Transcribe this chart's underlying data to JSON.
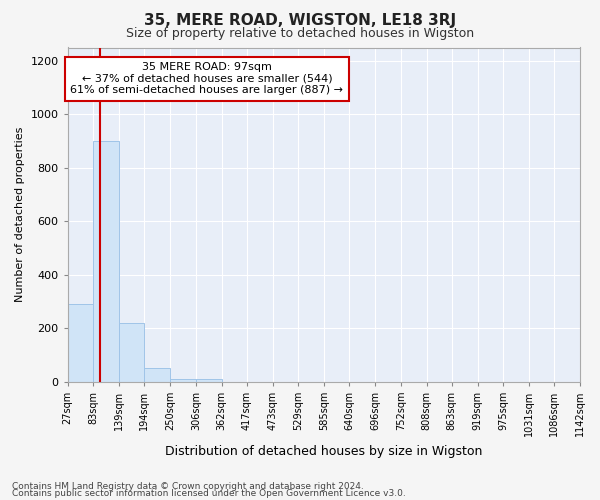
{
  "title": "35, MERE ROAD, WIGSTON, LE18 3RJ",
  "subtitle": "Size of property relative to detached houses in Wigston",
  "xlabel": "Distribution of detached houses by size in Wigston",
  "ylabel": "Number of detached properties",
  "bar_color": "#d0e4f7",
  "bar_edgecolor": "#a0c4e8",
  "plot_bg_color": "#e8eef8",
  "fig_bg_color": "#f5f5f5",
  "grid_color": "#ffffff",
  "bin_edges": [
    27,
    83,
    139,
    194,
    250,
    306,
    362,
    417,
    473,
    529,
    585,
    640,
    696,
    752,
    808,
    863,
    919,
    975,
    1031,
    1086,
    1142
  ],
  "bar_heights": [
    290,
    900,
    220,
    50,
    10,
    10,
    0,
    0,
    0,
    0,
    0,
    0,
    0,
    0,
    0,
    0,
    0,
    0,
    0,
    0
  ],
  "property_size": 97,
  "property_line_color": "#cc0000",
  "annotation_line1": "35 MERE ROAD: 97sqm",
  "annotation_line2": "← 37% of detached houses are smaller (544)",
  "annotation_line3": "61% of semi-detached houses are larger (887) →",
  "annotation_box_color": "#ffffff",
  "annotation_box_edgecolor": "#cc0000",
  "ylim": [
    0,
    1250
  ],
  "yticks": [
    0,
    200,
    400,
    600,
    800,
    1000,
    1200
  ],
  "footnote1": "Contains HM Land Registry data © Crown copyright and database right 2024.",
  "footnote2": "Contains public sector information licensed under the Open Government Licence v3.0."
}
